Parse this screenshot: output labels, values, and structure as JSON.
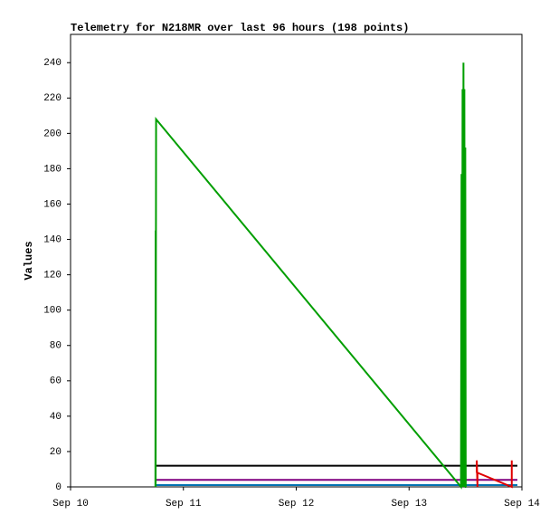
{
  "chart_data": {
    "type": "line",
    "title": "Telemetry for N218MR over last 96 hours (198 points)",
    "y_label": "Values",
    "xlim": [
      0,
      4
    ],
    "xticks": [
      {
        "value": 0,
        "label": "Sep 10"
      },
      {
        "value": 1,
        "label": "Sep 11"
      },
      {
        "value": 2,
        "label": "Sep 12"
      },
      {
        "value": 3,
        "label": "Sep 13"
      },
      {
        "value": 4,
        "label": "Sep 14"
      }
    ],
    "ylim": [
      0,
      256
    ],
    "yticks": [
      0,
      20,
      40,
      60,
      80,
      100,
      120,
      140,
      160,
      180,
      200,
      220,
      240
    ],
    "series": [
      {
        "color": "#0072b2",
        "x": [
          0.754,
          3.96
        ],
        "values": [
          1,
          1
        ]
      },
      {
        "color": "#800080",
        "x": [
          0.754,
          3.96
        ],
        "values": [
          4,
          4
        ]
      },
      {
        "color": "#000000",
        "x": [
          0.754,
          3.96
        ],
        "values": [
          12,
          12
        ]
      },
      {
        "color": "#009e00",
        "x": [
          0.752,
          0.754,
          0.754,
          0.758,
          3.46,
          3.465,
          3.47,
          3.474,
          3.478,
          3.482,
          3.486,
          3.49,
          3.494,
          3.498,
          3.502,
          3.506
        ],
        "values": [
          0,
          145,
          0,
          208,
          0,
          177,
          0,
          225,
          0,
          240,
          0,
          225,
          0,
          192,
          0,
          0
        ]
      },
      {
        "color": "#e00000",
        "x": [
          3.6,
          3.6,
          3.606,
          3.606,
          3.91,
          3.91
        ],
        "values": [
          8,
          15,
          0,
          8,
          0,
          15
        ]
      }
    ]
  }
}
